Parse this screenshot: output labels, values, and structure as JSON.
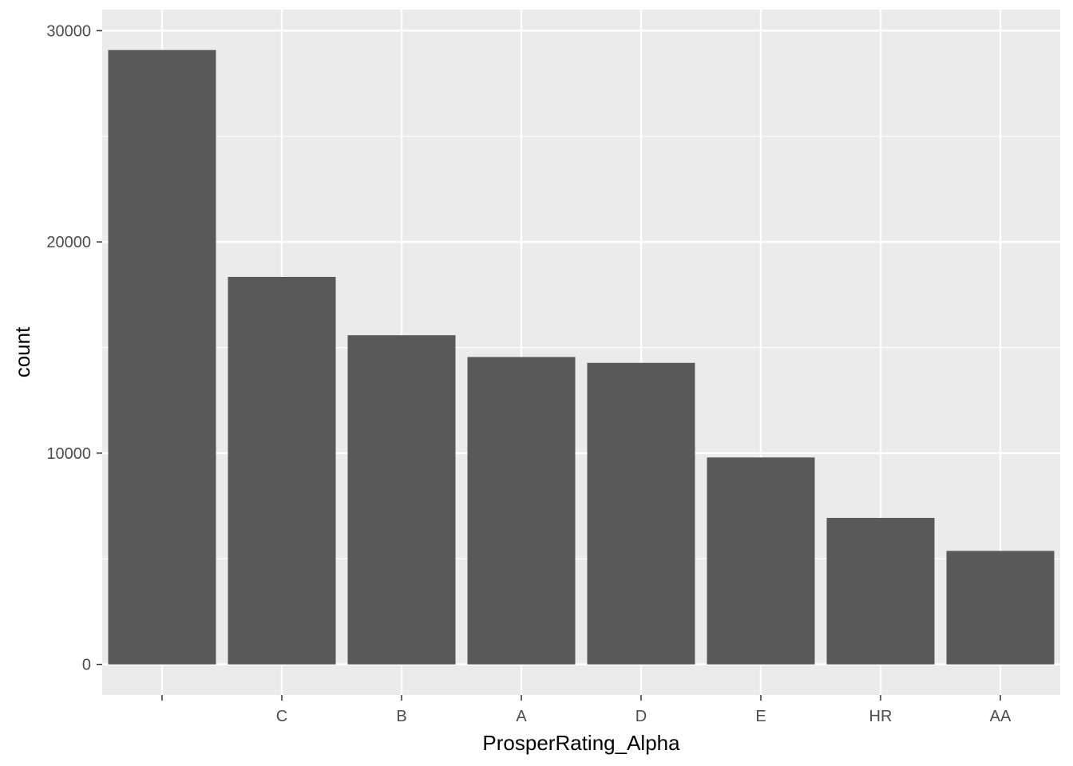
{
  "chart_data": {
    "type": "bar",
    "categories": [
      "",
      "C",
      "B",
      "A",
      "D",
      "E",
      "HR",
      "AA"
    ],
    "values": [
      29084,
      18345,
      15581,
      14551,
      14274,
      9795,
      6935,
      5372
    ],
    "xlabel": "ProsperRating_Alpha",
    "ylabel": "count",
    "ylim": [
      -1450,
      31000
    ],
    "yticks": [
      0,
      10000,
      20000,
      30000
    ],
    "grid": true,
    "colors": {
      "panel": "#ebebeb",
      "grid": "#ffffff",
      "bar": "#595959",
      "tick": "#333333"
    }
  }
}
